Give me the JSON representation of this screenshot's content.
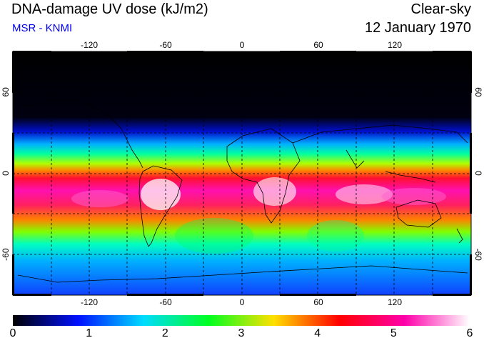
{
  "header": {
    "title": "DNA-damage UV dose (kJ/m2)",
    "credit": "MSR - KNMI",
    "condition": "Clear-sky",
    "date": "12 January 1970"
  },
  "map": {
    "lon_ticks": [
      -120,
      -60,
      0,
      60,
      120
    ],
    "lon_tick_labels": [
      "-120",
      "-60",
      "0",
      "60",
      "120"
    ],
    "lat_ticks": [
      60,
      0,
      -60
    ],
    "lat_tick_labels": [
      "60",
      "0",
      "-60"
    ]
  },
  "colorbar": {
    "min": 0,
    "max": 6,
    "labels": [
      "0",
      "1",
      "2",
      "3",
      "4",
      "5",
      "6"
    ],
    "colors": [
      "#000000",
      "#0010ff",
      "#00dcff",
      "#00ff20",
      "#ffe000",
      "#ff0000",
      "#ff00aa",
      "#ffffff"
    ]
  }
}
